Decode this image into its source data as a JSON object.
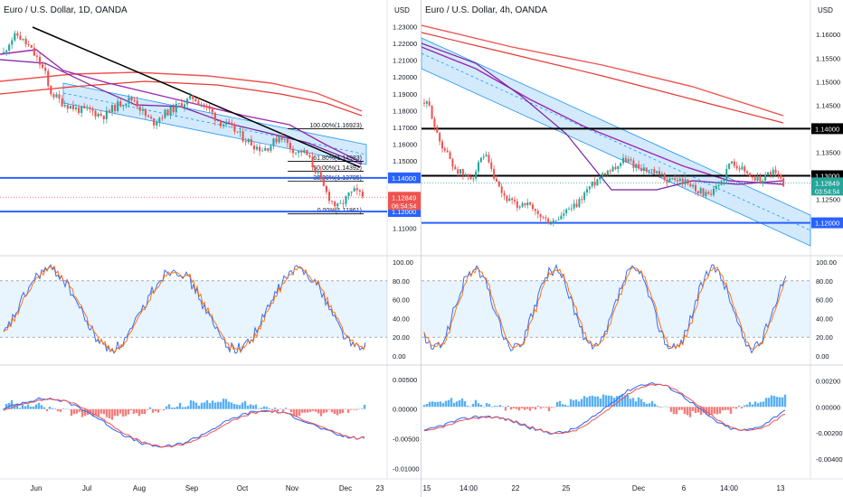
{
  "chart_data": [
    {
      "type": "candlestick",
      "title": "Euro / U.S. Dollar, 1D, OANDA",
      "currency": "USD",
      "price_ticks": [
        "1.23000",
        "1.22000",
        "1.21000",
        "1.20000",
        "1.19000",
        "1.18000",
        "1.17000",
        "1.16000",
        "1.15000",
        "1.14000",
        "1.13000",
        "1.12000",
        "1.11000"
      ],
      "price_range": [
        1.105,
        1.235
      ],
      "x_labels": [
        "Jun",
        "Jul",
        "Aug",
        "Sep",
        "Oct",
        "Nov",
        "Dec",
        "23"
      ],
      "price_path": [
        [
          0,
          1.214
        ],
        [
          5,
          1.22
        ],
        [
          10,
          1.223
        ],
        [
          16,
          1.225
        ],
        [
          22,
          1.221
        ],
        [
          28,
          1.218
        ],
        [
          34,
          1.213
        ],
        [
          40,
          1.208
        ],
        [
          46,
          1.202
        ],
        [
          50,
          1.192
        ],
        [
          56,
          1.189
        ],
        [
          64,
          1.185
        ],
        [
          72,
          1.183
        ],
        [
          80,
          1.181
        ],
        [
          88,
          1.18
        ],
        [
          96,
          1.18
        ],
        [
          104,
          1.178
        ],
        [
          112,
          1.177
        ],
        [
          120,
          1.181
        ],
        [
          128,
          1.184
        ],
        [
          136,
          1.186
        ],
        [
          144,
          1.187
        ],
        [
          150,
          1.182
        ],
        [
          158,
          1.176
        ],
        [
          166,
          1.173
        ],
        [
          172,
          1.176
        ],
        [
          180,
          1.179
        ],
        [
          188,
          1.181
        ],
        [
          196,
          1.184
        ],
        [
          204,
          1.186
        ],
        [
          210,
          1.188
        ],
        [
          216,
          1.185
        ],
        [
          222,
          1.183
        ],
        [
          228,
          1.18
        ],
        [
          234,
          1.176
        ],
        [
          240,
          1.173
        ],
        [
          248,
          1.171
        ],
        [
          256,
          1.168
        ],
        [
          262,
          1.165
        ],
        [
          270,
          1.162
        ],
        [
          278,
          1.159
        ],
        [
          286,
          1.157
        ],
        [
          294,
          1.159
        ],
        [
          300,
          1.162
        ],
        [
          306,
          1.166
        ],
        [
          312,
          1.161
        ],
        [
          318,
          1.158
        ],
        [
          324,
          1.155
        ],
        [
          330,
          1.156
        ],
        [
          336,
          1.153
        ],
        [
          342,
          1.147
        ],
        [
          348,
          1.142
        ],
        [
          352,
          1.136
        ],
        [
          358,
          1.13
        ],
        [
          364,
          1.125
        ],
        [
          370,
          1.122
        ],
        [
          376,
          1.126
        ],
        [
          382,
          1.13
        ],
        [
          388,
          1.132
        ],
        [
          394,
          1.13
        ],
        [
          400,
          1.128
        ]
      ],
      "current_price": "1.12849",
      "countdown": "06:54:54",
      "levels": [
        {
          "price": 1.14,
          "label": "1.14000",
          "color": "#2962ff"
        },
        {
          "price": 1.12,
          "label": "1.12000",
          "color": "#2962ff"
        }
      ],
      "fibonacci": [
        {
          "price": 1.16923,
          "label": "100.00%(1.16923)"
        },
        {
          "price": 1.14983,
          "label": "61.80%(1.14983)"
        },
        {
          "price": 1.14392,
          "label": "50.00%(1.14392)"
        },
        {
          "price": 1.13795,
          "label": "38.20%(1.13795)"
        },
        {
          "price": 1.11861,
          "label": "0.00%(1.11861)"
        }
      ],
      "stochastic_ticks": [
        "100.00",
        "80.00",
        "60.00",
        "40.00",
        "20.00",
        "0.00"
      ],
      "stochastic_band": [
        20,
        80
      ],
      "macd_ticks": [
        "0.00500",
        "0.00000",
        "-0.00500",
        "-0.01000"
      ],
      "macd_range": [
        -0.011,
        0.0065
      ]
    },
    {
      "type": "candlestick",
      "title": "Euro / U.S. Dollar, 4h, OANDA",
      "currency": "USD",
      "price_ticks": [
        "1.16000",
        "1.15500",
        "1.15000",
        "1.14500",
        "1.14000",
        "1.13500",
        "1.13000",
        "1.12500",
        "1.12000"
      ],
      "price_range": [
        1.1155,
        1.1635
      ],
      "x_labels": [
        "15",
        "14:00",
        "22",
        "25",
        "Dec",
        "6",
        "14:00",
        "13"
      ],
      "price_path": [
        [
          0,
          1.1455
        ],
        [
          6,
          1.1445
        ],
        [
          10,
          1.142
        ],
        [
          14,
          1.1385
        ],
        [
          20,
          1.1365
        ],
        [
          26,
          1.1345
        ],
        [
          32,
          1.132
        ],
        [
          38,
          1.131
        ],
        [
          44,
          1.13
        ],
        [
          50,
          1.1295
        ],
        [
          56,
          1.1305
        ],
        [
          62,
          1.133
        ],
        [
          68,
          1.134
        ],
        [
          74,
          1.131
        ],
        [
          80,
          1.128
        ],
        [
          86,
          1.126
        ],
        [
          92,
          1.125
        ],
        [
          98,
          1.124
        ],
        [
          104,
          1.1235
        ],
        [
          110,
          1.1245
        ],
        [
          116,
          1.1235
        ],
        [
          122,
          1.122
        ],
        [
          128,
          1.1215
        ],
        [
          134,
          1.1205
        ],
        [
          140,
          1.12
        ],
        [
          146,
          1.1205
        ],
        [
          152,
          1.1215
        ],
        [
          158,
          1.1225
        ],
        [
          164,
          1.123
        ],
        [
          170,
          1.124
        ],
        [
          176,
          1.126
        ],
        [
          182,
          1.1275
        ],
        [
          188,
          1.1285
        ],
        [
          194,
          1.13
        ],
        [
          200,
          1.131
        ],
        [
          206,
          1.1315
        ],
        [
          212,
          1.132
        ],
        [
          218,
          1.133
        ],
        [
          224,
          1.1335
        ],
        [
          230,
          1.1325
        ],
        [
          236,
          1.132
        ],
        [
          242,
          1.1315
        ],
        [
          248,
          1.131
        ],
        [
          254,
          1.1305
        ],
        [
          260,
          1.13
        ],
        [
          266,
          1.1295
        ],
        [
          272,
          1.129
        ],
        [
          278,
          1.1292
        ],
        [
          284,
          1.129
        ],
        [
          290,
          1.1285
        ],
        [
          296,
          1.128
        ],
        [
          302,
          1.127
        ],
        [
          308,
          1.1265
        ],
        [
          314,
          1.1255
        ],
        [
          320,
          1.1265
        ],
        [
          326,
          1.128
        ],
        [
          332,
          1.13
        ],
        [
          336,
          1.132
        ],
        [
          342,
          1.133
        ],
        [
          348,
          1.132
        ],
        [
          354,
          1.131
        ],
        [
          360,
          1.13
        ],
        [
          366,
          1.1295
        ],
        [
          372,
          1.129
        ],
        [
          378,
          1.13
        ],
        [
          384,
          1.131
        ],
        [
          390,
          1.13
        ],
        [
          396,
          1.1285
        ]
      ],
      "current_price": "1.12849",
      "countdown": "03:54:54",
      "levels": [
        {
          "price": 1.14,
          "label": "1.14000",
          "color": "#000000"
        },
        {
          "price": 1.13,
          "label": "1.13000",
          "color": "#000000"
        },
        {
          "price": 1.12,
          "label": "1.12000",
          "color": "#2962ff"
        }
      ],
      "stochastic_ticks": [
        "100.00",
        "80.00",
        "60.00",
        "40.00",
        "20.00",
        "0.00"
      ],
      "stochastic_band": [
        20,
        80
      ],
      "macd_ticks": [
        "0.00200",
        "0.00000",
        "-0.00200",
        "-0.00400"
      ],
      "macd_range": [
        -0.0052,
        0.0028
      ]
    }
  ]
}
